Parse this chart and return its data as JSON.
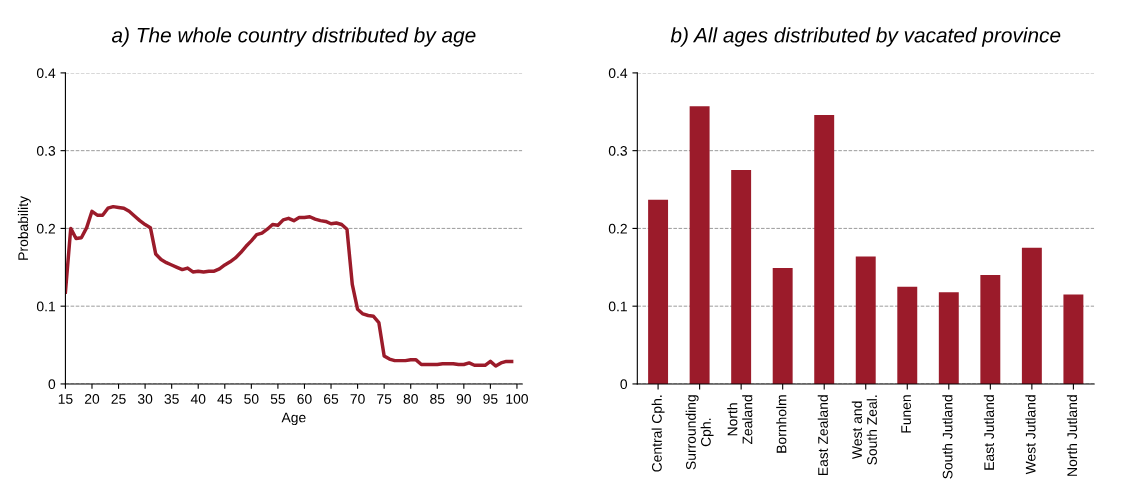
{
  "chart_data": [
    {
      "type": "line",
      "title": "a) The whole country distributed by age",
      "xlabel": "Age",
      "ylabel": "Probability",
      "x": [
        15,
        16,
        17,
        18,
        19,
        20,
        21,
        22,
        23,
        24,
        25,
        26,
        27,
        28,
        29,
        30,
        31,
        32,
        33,
        34,
        35,
        36,
        37,
        38,
        39,
        40,
        41,
        42,
        43,
        44,
        45,
        46,
        47,
        48,
        49,
        50,
        51,
        52,
        53,
        54,
        55,
        56,
        57,
        58,
        59,
        60,
        61,
        62,
        63,
        64,
        65,
        66,
        67,
        68,
        69,
        70,
        71,
        72,
        73,
        74,
        75,
        76,
        77,
        78,
        79,
        80,
        81,
        82,
        83,
        84,
        85,
        86,
        87,
        88,
        89,
        90,
        91,
        92,
        93,
        94,
        95,
        96,
        97,
        98,
        99
      ],
      "series": [
        {
          "color": "#9b1b2a",
          "values": [
            0.118,
            0.2,
            0.187,
            0.188,
            0.201,
            0.222,
            0.217,
            0.217,
            0.226,
            0.228,
            0.227,
            0.226,
            0.222,
            0.216,
            0.21,
            0.205,
            0.201,
            0.167,
            0.16,
            0.156,
            0.153,
            0.15,
            0.147,
            0.149,
            0.144,
            0.145,
            0.144,
            0.145,
            0.145,
            0.148,
            0.153,
            0.157,
            0.162,
            0.169,
            0.177,
            0.184,
            0.192,
            0.194,
            0.199,
            0.205,
            0.204,
            0.211,
            0.213,
            0.21,
            0.214,
            0.214,
            0.215,
            0.212,
            0.21,
            0.209,
            0.206,
            0.207,
            0.205,
            0.199,
            0.128,
            0.096,
            0.09,
            0.088,
            0.087,
            0.079,
            0.036,
            0.032,
            0.03,
            0.03,
            0.03,
            0.031,
            0.031,
            0.025,
            0.025,
            0.025,
            0.025,
            0.026,
            0.026,
            0.026,
            0.025,
            0.025,
            0.027,
            0.024,
            0.024,
            0.024,
            0.029,
            0.023,
            0.027,
            0.029,
            0.029
          ]
        }
      ],
      "xlim": [
        15,
        101
      ],
      "xticks": [
        15,
        20,
        25,
        30,
        35,
        40,
        45,
        50,
        55,
        60,
        65,
        70,
        75,
        80,
        85,
        90,
        95,
        100
      ],
      "ylim": [
        0,
        0.4
      ],
      "yticks": [
        0,
        0.1,
        0.2,
        0.3,
        0.4
      ],
      "grid": "y",
      "legend": false
    },
    {
      "type": "bar",
      "title": "b) All ages distributed by vacated province",
      "categories": [
        "Central Cph.",
        "Surrounding\nCph.",
        "North\nZealand",
        "Bornholm",
        "East Zealand",
        "West and\nSouth Zeal.",
        "Funen",
        "South Jutland",
        "East Jutland",
        "West Jutland",
        "North Jutland"
      ],
      "values": [
        0.237,
        0.357,
        0.275,
        0.149,
        0.346,
        0.164,
        0.125,
        0.118,
        0.14,
        0.175,
        0.115
      ],
      "color": "#9b1b2a",
      "ylim": [
        0,
        0.4
      ],
      "yticks": [
        0,
        0.1,
        0.2,
        0.3,
        0.4
      ],
      "grid": "y",
      "legend": false
    }
  ]
}
